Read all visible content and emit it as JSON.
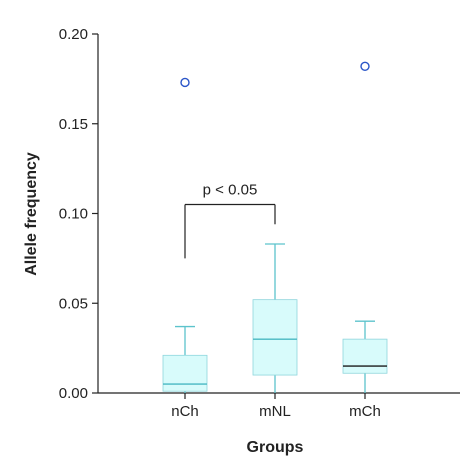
{
  "chart_data": {
    "type": "box",
    "title": "",
    "xlabel": "Groups",
    "ylabel": "Allele frequency",
    "ylim": [
      0,
      0.2
    ],
    "yticks": [
      "0.00",
      "0.05",
      "0.10",
      "0.15",
      "0.20"
    ],
    "ytick_values": [
      0,
      0.05,
      0.1,
      0.15,
      0.2
    ],
    "grid": false,
    "legend": "none",
    "categories": [
      "nCh",
      "mNL",
      "mCh"
    ],
    "boxes": [
      {
        "name": "nCh",
        "whisker_low": 0.0,
        "q1": 0.001,
        "median": 0.005,
        "q3": 0.021,
        "whisker_high": 0.037,
        "outliers": [
          0.173
        ]
      },
      {
        "name": "mNL",
        "whisker_low": 0.0,
        "q1": 0.01,
        "median": 0.03,
        "q3": 0.052,
        "whisker_high": 0.083,
        "outliers": []
      },
      {
        "name": "mCh",
        "whisker_low": 0.0,
        "q1": 0.011,
        "median": 0.015,
        "q3": 0.03,
        "whisker_high": 0.04,
        "outliers": [
          0.182
        ]
      }
    ],
    "annotation": {
      "text": "p < 0.05",
      "from": "nCh",
      "to": "mNL",
      "bracket_top": 0.105,
      "left_leg_bottom": 0.075,
      "right_leg_bottom": 0.094
    },
    "colors": {
      "box_fill": "#d8fbfb",
      "box_stroke": "#8fd6dc",
      "median": "#49b8c2",
      "median_mch": "#1a1a1a",
      "whisker": "#5cc3cc",
      "outlier": "#2a55c8",
      "axis": "#222222"
    }
  }
}
